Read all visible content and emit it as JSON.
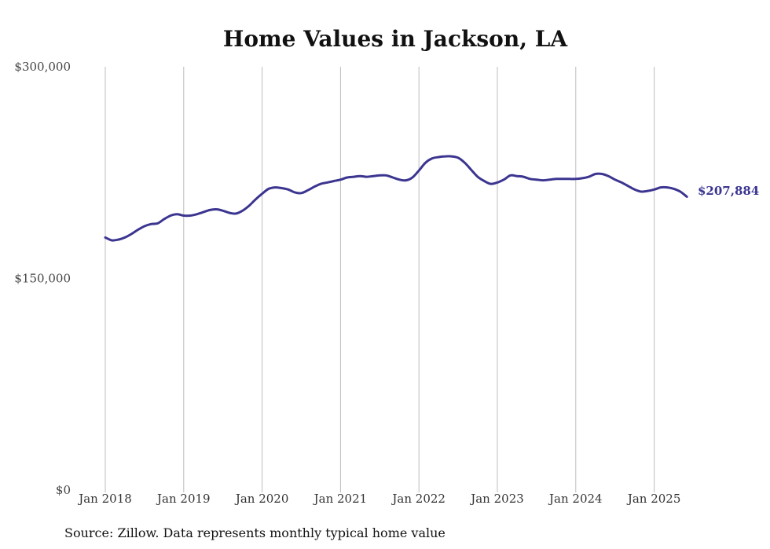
{
  "chart_data": {
    "type": "line",
    "title": "Home Values in Jackson, LA",
    "xlabel": "",
    "ylabel": "",
    "ylim": [
      0,
      300000
    ],
    "y_ticks": [
      {
        "value": 300000,
        "label": "$300,000"
      },
      {
        "value": 150000,
        "label": "$150,000"
      },
      {
        "value": 0,
        "label": "$0"
      }
    ],
    "x_ticks": [
      {
        "value": "2018-01",
        "label": "Jan 2018"
      },
      {
        "value": "2019-01",
        "label": "Jan 2019"
      },
      {
        "value": "2020-01",
        "label": "Jan 2020"
      },
      {
        "value": "2021-01",
        "label": "Jan 2021"
      },
      {
        "value": "2022-01",
        "label": "Jan 2022"
      },
      {
        "value": "2023-01",
        "label": "Jan 2023"
      },
      {
        "value": "2024-01",
        "label": "Jan 2024"
      },
      {
        "value": "2025-01",
        "label": "Jan 2025"
      }
    ],
    "grid": "vertical",
    "series": [
      {
        "color": "#3b3590",
        "points": [
          [
            "2018-01",
            179000
          ],
          [
            "2018-02",
            177000
          ],
          [
            "2018-03",
            177500
          ],
          [
            "2018-04",
            179000
          ],
          [
            "2018-05",
            181500
          ],
          [
            "2018-06",
            184500
          ],
          [
            "2018-07",
            187000
          ],
          [
            "2018-08",
            188500
          ],
          [
            "2018-09",
            189000
          ],
          [
            "2018-10",
            192000
          ],
          [
            "2018-11",
            194500
          ],
          [
            "2018-12",
            195500
          ],
          [
            "2019-01",
            194500
          ],
          [
            "2019-02",
            194500
          ],
          [
            "2019-03",
            195500
          ],
          [
            "2019-04",
            197000
          ],
          [
            "2019-05",
            198500
          ],
          [
            "2019-06",
            199000
          ],
          [
            "2019-07",
            198000
          ],
          [
            "2019-08",
            196500
          ],
          [
            "2019-09",
            196000
          ],
          [
            "2019-10",
            198000
          ],
          [
            "2019-11",
            201500
          ],
          [
            "2019-12",
            206000
          ],
          [
            "2020-01",
            210000
          ],
          [
            "2020-02",
            213500
          ],
          [
            "2020-03",
            214500
          ],
          [
            "2020-04",
            214000
          ],
          [
            "2020-05",
            213000
          ],
          [
            "2020-06",
            211000
          ],
          [
            "2020-07",
            210500
          ],
          [
            "2020-08",
            212500
          ],
          [
            "2020-09",
            215000
          ],
          [
            "2020-10",
            217000
          ],
          [
            "2020-11",
            218000
          ],
          [
            "2020-12",
            219000
          ],
          [
            "2021-01",
            220000
          ],
          [
            "2021-02",
            221500
          ],
          [
            "2021-03",
            222000
          ],
          [
            "2021-04",
            222500
          ],
          [
            "2021-05",
            222000
          ],
          [
            "2021-06",
            222500
          ],
          [
            "2021-07",
            223000
          ],
          [
            "2021-08",
            223000
          ],
          [
            "2021-09",
            221500
          ],
          [
            "2021-10",
            220000
          ],
          [
            "2021-11",
            219500
          ],
          [
            "2021-12",
            221500
          ],
          [
            "2022-01",
            226500
          ],
          [
            "2022-02",
            232000
          ],
          [
            "2022-03",
            235000
          ],
          [
            "2022-04",
            236000
          ],
          [
            "2022-05",
            236500
          ],
          [
            "2022-06",
            236500
          ],
          [
            "2022-07",
            235500
          ],
          [
            "2022-08",
            232000
          ],
          [
            "2022-09",
            227000
          ],
          [
            "2022-10",
            222000
          ],
          [
            "2022-11",
            219000
          ],
          [
            "2022-12",
            217000
          ],
          [
            "2023-01",
            218000
          ],
          [
            "2023-02",
            220000
          ],
          [
            "2023-03",
            223000
          ],
          [
            "2023-04",
            222500
          ],
          [
            "2023-05",
            222000
          ],
          [
            "2023-06",
            220500
          ],
          [
            "2023-07",
            220000
          ],
          [
            "2023-08",
            219500
          ],
          [
            "2023-09",
            220000
          ],
          [
            "2023-10",
            220500
          ],
          [
            "2023-11",
            220500
          ],
          [
            "2023-12",
            220500
          ],
          [
            "2024-01",
            220500
          ],
          [
            "2024-02",
            221000
          ],
          [
            "2024-03",
            222000
          ],
          [
            "2024-04",
            224000
          ],
          [
            "2024-05",
            224000
          ],
          [
            "2024-06",
            222500
          ],
          [
            "2024-07",
            220000
          ],
          [
            "2024-08",
            218000
          ],
          [
            "2024-09",
            215500
          ],
          [
            "2024-10",
            213000
          ],
          [
            "2024-11",
            211500
          ],
          [
            "2024-12",
            212000
          ],
          [
            "2025-01",
            213000
          ],
          [
            "2025-02",
            214500
          ],
          [
            "2025-03",
            214500
          ],
          [
            "2025-04",
            213500
          ],
          [
            "2025-05",
            211500
          ],
          [
            "2025-06",
            207884
          ]
        ]
      }
    ],
    "end_label": "$207,884",
    "source": "Source: Zillow. Data represents monthly typical home value"
  }
}
